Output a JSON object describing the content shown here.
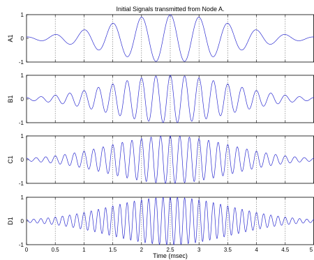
{
  "figure": {
    "title": "Initial Signals transmitted from Node A.",
    "xlabel": "Time (msec)"
  },
  "chart_data": {
    "type": "line",
    "title": "Initial Signals transmitted from Node A.",
    "xlabel": "Time (msec)",
    "xlim": [
      0,
      5
    ],
    "x_ticks": [
      "0",
      "0.5",
      "1",
      "1.5",
      "2",
      "2.5",
      "3",
      "3.5",
      "4",
      "4.5",
      "5"
    ],
    "x_grid": "dotted vertical lines at each x tick",
    "y_ticks": [
      "1",
      "0",
      "-1"
    ],
    "ylim": [
      -1,
      1
    ],
    "line_color": "#2b2bd0",
    "panels": [
      {
        "ylabel": "A1",
        "carrier_cycles_per_msec": 2.0,
        "envelope": "gaussian",
        "center_msec": 2.5,
        "sigma_msec": 1.05,
        "peak": 1.0
      },
      {
        "ylabel": "B1",
        "carrier_cycles_per_msec": 4.0,
        "envelope": "gaussian",
        "center_msec": 2.5,
        "sigma_msec": 1.05,
        "peak": 1.0
      },
      {
        "ylabel": "C1",
        "carrier_cycles_per_msec": 6.0,
        "envelope": "gaussian",
        "center_msec": 2.5,
        "sigma_msec": 1.05,
        "peak": 1.0
      },
      {
        "ylabel": "D1",
        "carrier_cycles_per_msec": 8.0,
        "envelope": "gaussian",
        "center_msec": 2.5,
        "sigma_msec": 1.05,
        "peak": 1.0
      }
    ]
  }
}
